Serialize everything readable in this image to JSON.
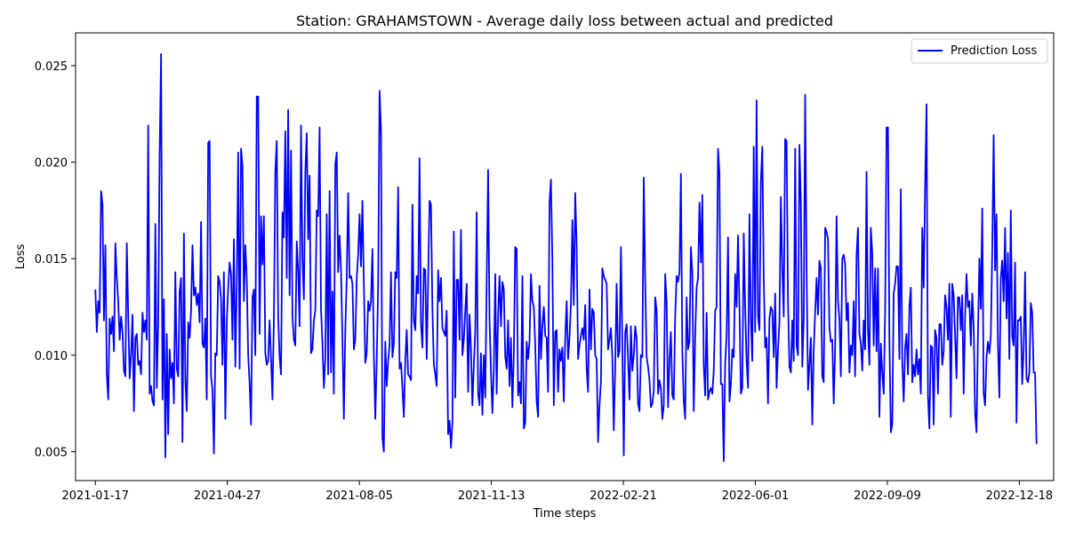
{
  "chart_data": {
    "type": "line",
    "title": "Station: GRAHAMSTOWN - Average daily loss between actual and predicted",
    "xlabel": "Time steps",
    "ylabel": "Loss",
    "x_start": "2021-01-17",
    "x_end": "2022-12-31",
    "xlim": [
      "2021-01-02",
      "2023-01-13"
    ],
    "ylim": [
      0.0035,
      0.0267
    ],
    "x_ticks": [
      "2021-01-17",
      "2021-04-27",
      "2021-08-05",
      "2021-11-13",
      "2022-02-21",
      "2022-06-01",
      "2022-09-09",
      "2022-12-18"
    ],
    "y_ticks": [
      0.005,
      0.01,
      0.015,
      0.02,
      0.025
    ],
    "y_tick_labels": [
      "0.005",
      "0.010",
      "0.015",
      "0.020",
      "0.025"
    ],
    "grid": false,
    "legend_position": "top-right",
    "series": [
      {
        "name": "Prediction Loss",
        "color": "#0000ff",
        "values": [
          0.0134,
          0.0112,
          0.0128,
          0.0122,
          0.0185,
          0.0178,
          0.0118,
          0.0157,
          0.009,
          0.0077,
          0.0119,
          0.0111,
          0.012,
          0.0102,
          0.0158,
          0.014,
          0.0128,
          0.0108,
          0.012,
          0.0112,
          0.0092,
          0.0089,
          0.0158,
          0.0121,
          0.0088,
          0.01,
          0.0121,
          0.0071,
          0.0109,
          0.0111,
          0.0095,
          0.0097,
          0.009,
          0.0122,
          0.0112,
          0.0118,
          0.0108,
          0.0219,
          0.008,
          0.0084,
          0.0076,
          0.0074,
          0.0168,
          0.0083,
          0.0117,
          0.0205,
          0.0256,
          0.0077,
          0.0129,
          0.0047,
          0.0111,
          0.0059,
          0.0103,
          0.0088,
          0.0096,
          0.0075,
          0.0143,
          0.0093,
          0.0089,
          0.0133,
          0.014,
          0.0055,
          0.0163,
          0.0087,
          0.0071,
          0.0117,
          0.0109,
          0.0123,
          0.0157,
          0.0131,
          0.0135,
          0.0126,
          0.0132,
          0.0117,
          0.0169,
          0.0106,
          0.0104,
          0.0119,
          0.0077,
          0.021,
          0.0211,
          0.0089,
          0.0082,
          0.0049,
          0.0101,
          0.01,
          0.0141,
          0.0138,
          0.0129,
          0.0095,
          0.0143,
          0.0067,
          0.0117,
          0.0135,
          0.0148,
          0.0142,
          0.0108,
          0.016,
          0.0094,
          0.0136,
          0.0205,
          0.0093,
          0.0207,
          0.0198,
          0.0128,
          0.0157,
          0.014,
          0.01,
          0.0085,
          0.0064,
          0.013,
          0.0134,
          0.01,
          0.0234,
          0.0234,
          0.0111,
          0.0172,
          0.0147,
          0.0172,
          0.0101,
          0.0095,
          0.0097,
          0.0118,
          0.0098,
          0.0077,
          0.0119,
          0.0195,
          0.0211,
          0.012,
          0.0099,
          0.009,
          0.0174,
          0.0161,
          0.0216,
          0.014,
          0.0227,
          0.0131,
          0.0206,
          0.012,
          0.0108,
          0.0105,
          0.0159,
          0.0144,
          0.0115,
          0.0219,
          0.015,
          0.0129,
          0.0195,
          0.0215,
          0.016,
          0.0193,
          0.0101,
          0.0103,
          0.0118,
          0.0123,
          0.0175,
          0.0172,
          0.0218,
          0.0124,
          0.0106,
          0.0083,
          0.0098,
          0.0173,
          0.009,
          0.0185,
          0.0091,
          0.0133,
          0.008,
          0.0199,
          0.0205,
          0.0143,
          0.0162,
          0.0144,
          0.0108,
          0.0067,
          0.0113,
          0.014,
          0.0184,
          0.014,
          0.0141,
          0.0137,
          0.0103,
          0.0108,
          0.014,
          0.0152,
          0.0173,
          0.0146,
          0.018,
          0.0137,
          0.0096,
          0.0101,
          0.0128,
          0.0123,
          0.0128,
          0.0155,
          0.0101,
          0.0067,
          0.0097,
          0.0136,
          0.0237,
          0.0216,
          0.0057,
          0.005,
          0.0107,
          0.0084,
          0.0097,
          0.0105,
          0.0143,
          0.0099,
          0.0106,
          0.0143,
          0.014,
          0.0187,
          0.0093,
          0.0096,
          0.0083,
          0.0068,
          0.0097,
          0.0113,
          0.009,
          0.0089,
          0.0087,
          0.0178,
          0.0118,
          0.0113,
          0.0141,
          0.0132,
          0.0202,
          0.0116,
          0.0104,
          0.0145,
          0.0144,
          0.0098,
          0.0138,
          0.018,
          0.0178,
          0.0124,
          0.0095,
          0.009,
          0.0084,
          0.0144,
          0.0128,
          0.014,
          0.0114,
          0.0112,
          0.011,
          0.0123,
          0.0059,
          0.0066,
          0.0052,
          0.0065,
          0.0164,
          0.0078,
          0.0139,
          0.0139,
          0.0108,
          0.0165,
          0.01,
          0.0108,
          0.0123,
          0.0137,
          0.0081,
          0.0121,
          0.0103,
          0.0074,
          0.0095,
          0.0112,
          0.0174,
          0.008,
          0.0074,
          0.0101,
          0.0069,
          0.01,
          0.0078,
          0.0138,
          0.0196,
          0.0118,
          0.0092,
          0.007,
          0.0093,
          0.0142,
          0.008,
          0.012,
          0.0141,
          0.0115,
          0.0138,
          0.0134,
          0.0099,
          0.0093,
          0.0118,
          0.0084,
          0.0109,
          0.0073,
          0.01,
          0.0156,
          0.0155,
          0.0079,
          0.0086,
          0.0075,
          0.0141,
          0.0062,
          0.0065,
          0.0107,
          0.0098,
          0.0107,
          0.0142,
          0.0128,
          0.0125,
          0.0105,
          0.0076,
          0.0068,
          0.0136,
          0.0098,
          0.0115,
          0.0125,
          0.011,
          0.0109,
          0.0081,
          0.0179,
          0.0191,
          0.0149,
          0.0074,
          0.0112,
          0.0113,
          0.0081,
          0.0103,
          0.0097,
          0.0104,
          0.0076,
          0.0109,
          0.0128,
          0.0098,
          0.0109,
          0.0127,
          0.017,
          0.0126,
          0.0184,
          0.0157,
          0.0098,
          0.0105,
          0.011,
          0.0114,
          0.0108,
          0.0126,
          0.0093,
          0.0081,
          0.0134,
          0.0103,
          0.0124,
          0.0122,
          0.01,
          0.0098,
          0.0055,
          0.0074,
          0.0086,
          0.0145,
          0.0141,
          0.0139,
          0.0137,
          0.0103,
          0.0108,
          0.0114,
          0.0099,
          0.0061,
          0.0094,
          0.0137,
          0.0099,
          0.0102,
          0.0156,
          0.0105,
          0.0048,
          0.0112,
          0.0116,
          0.0098,
          0.0077,
          0.0115,
          0.0092,
          0.01,
          0.0115,
          0.0109,
          0.0075,
          0.0071,
          0.01,
          0.0099,
          0.0192,
          0.0138,
          0.0099,
          0.0094,
          0.0087,
          0.0073,
          0.0075,
          0.0081,
          0.013,
          0.0123,
          0.008,
          0.0087,
          0.0083,
          0.0067,
          0.0074,
          0.0142,
          0.0128,
          0.0073,
          0.0097,
          0.0112,
          0.0079,
          0.0077,
          0.012,
          0.0141,
          0.0138,
          0.0143,
          0.0194,
          0.0102,
          0.0076,
          0.0067,
          0.013,
          0.0103,
          0.0107,
          0.0156,
          0.0143,
          0.0071,
          0.011,
          0.0135,
          0.014,
          0.0179,
          0.0148,
          0.0183,
          0.0095,
          0.0079,
          0.0122,
          0.0077,
          0.0081,
          0.0083,
          0.008,
          0.0092,
          0.0123,
          0.0125,
          0.0207,
          0.0194,
          0.0085,
          0.0085,
          0.0045,
          0.0096,
          0.011,
          0.0161,
          0.0076,
          0.0085,
          0.0103,
          0.0099,
          0.0142,
          0.0125,
          0.0162,
          0.0125,
          0.008,
          0.0083,
          0.0163,
          0.0125,
          0.0097,
          0.0083,
          0.0173,
          0.0118,
          0.0097,
          0.0208,
          0.0112,
          0.0232,
          0.012,
          0.0113,
          0.019,
          0.0208,
          0.014,
          0.0104,
          0.0109,
          0.0075,
          0.0119,
          0.0125,
          0.0123,
          0.0099,
          0.0132,
          0.0083,
          0.0103,
          0.0117,
          0.0182,
          0.0145,
          0.012,
          0.0212,
          0.0211,
          0.0128,
          0.0094,
          0.0091,
          0.0118,
          0.0097,
          0.0207,
          0.0105,
          0.01,
          0.0209,
          0.0179,
          0.0094,
          0.0119,
          0.0235,
          0.0146,
          0.0082,
          0.0095,
          0.0109,
          0.0064,
          0.0103,
          0.0122,
          0.014,
          0.0121,
          0.0149,
          0.0145,
          0.0089,
          0.0086,
          0.0166,
          0.0164,
          0.016,
          0.0114,
          0.0107,
          0.0108,
          0.0075,
          0.0103,
          0.0172,
          0.0128,
          0.0119,
          0.0089,
          0.015,
          0.0152,
          0.0147,
          0.0118,
          0.0127,
          0.0091,
          0.0105,
          0.01,
          0.0128,
          0.0089,
          0.0152,
          0.0166,
          0.0111,
          0.0106,
          0.0092,
          0.0118,
          0.0103,
          0.0195,
          0.0113,
          0.0095,
          0.0166,
          0.0153,
          0.0105,
          0.0145,
          0.0102,
          0.0145,
          0.0068,
          0.0106,
          0.0091,
          0.008,
          0.0122,
          0.0218,
          0.0218,
          0.0108,
          0.006,
          0.0064,
          0.0132,
          0.0137,
          0.0146,
          0.0146,
          0.0098,
          0.0186,
          0.0096,
          0.0076,
          0.0104,
          0.0111,
          0.009,
          0.0125,
          0.0135,
          0.0086,
          0.0095,
          0.0089,
          0.0103,
          0.009,
          0.0098,
          0.008,
          0.0166,
          0.0135,
          0.0187,
          0.023,
          0.0079,
          0.0062,
          0.0105,
          0.0104,
          0.0064,
          0.0113,
          0.0109,
          0.008,
          0.0116,
          0.0116,
          0.0095,
          0.0102,
          0.0131,
          0.0125,
          0.0108,
          0.0137,
          0.0068,
          0.0137,
          0.0131,
          0.011,
          0.0088,
          0.013,
          0.013,
          0.0113,
          0.0131,
          0.008,
          0.012,
          0.0142,
          0.0125,
          0.0128,
          0.0105,
          0.0132,
          0.0115,
          0.007,
          0.006,
          0.011,
          0.015,
          0.0124,
          0.0176,
          0.008,
          0.0074,
          0.0099,
          0.0107,
          0.0101,
          0.011,
          0.0154,
          0.0214,
          0.0144,
          0.0173,
          0.0106,
          0.0078,
          0.014,
          0.0149,
          0.0128,
          0.0166,
          0.0119,
          0.0153,
          0.0098,
          0.0175,
          0.011,
          0.0105,
          0.0148,
          0.0065,
          0.0118,
          0.0118,
          0.012,
          0.0085,
          0.0103,
          0.0143,
          0.0088,
          0.0086,
          0.0091,
          0.0127,
          0.0122,
          0.0091,
          0.0091,
          0.0054
        ]
      }
    ]
  }
}
